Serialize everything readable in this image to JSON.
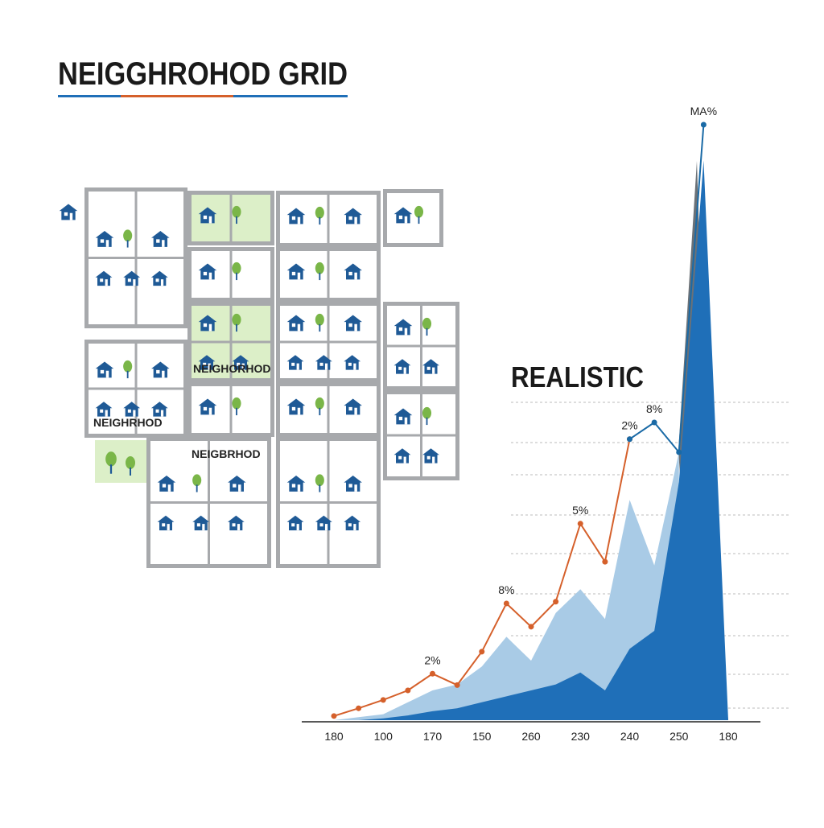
{
  "header": {
    "title": "NEIGGHROHOD GRID"
  },
  "illustration": {
    "labels": [
      "NEIGHORHOD",
      "NEIGHRHOD",
      "NEIGBRHOD"
    ]
  },
  "chart_data": {
    "type": "line",
    "annotation": "REALISTIC",
    "categories": [
      "180",
      null,
      "100",
      null,
      "170",
      null,
      "150",
      null,
      "260",
      null,
      "230",
      null,
      "240",
      null,
      "250",
      null,
      "180"
    ],
    "ylim": [
      0,
      100
    ],
    "series": [
      {
        "color": "#a9cbe6",
        "area": true,
        "values": [
          0,
          0.5,
          1,
          3,
          5,
          6,
          9,
          14,
          10,
          18,
          22,
          17,
          37,
          26,
          45,
          null,
          null
        ]
      },
      {
        "color": "#1f6fb8",
        "area": true,
        "values": [
          0,
          0,
          0.3,
          0.8,
          1.5,
          2,
          3,
          4,
          5,
          6,
          8,
          5,
          12,
          15,
          40,
          94,
          0
        ]
      },
      {
        "color": "#d5602b",
        "area": false,
        "values": [
          0.7,
          2,
          3.4,
          5,
          7.8,
          5.9,
          11.5,
          19.6,
          15.7,
          19.9,
          33,
          26.6,
          47.2,
          null,
          null,
          null,
          null
        ]
      },
      {
        "color": "#1a6aa6",
        "area": false,
        "values": [
          null,
          null,
          null,
          null,
          null,
          null,
          null,
          null,
          null,
          null,
          null,
          null,
          47.2,
          50,
          45,
          100,
          null
        ]
      }
    ],
    "annotations": [
      {
        "text": "2%",
        "series": 2,
        "point": 4
      },
      {
        "text": "8%",
        "series": 2,
        "point": 7
      },
      {
        "text": "5%",
        "series": 2,
        "point": 10
      },
      {
        "text": "2%",
        "series": 2,
        "point": 12
      },
      {
        "text": "8%",
        "series": 3,
        "point": 13
      },
      {
        "text": "MA%",
        "series": 3,
        "point": 15
      }
    ]
  }
}
